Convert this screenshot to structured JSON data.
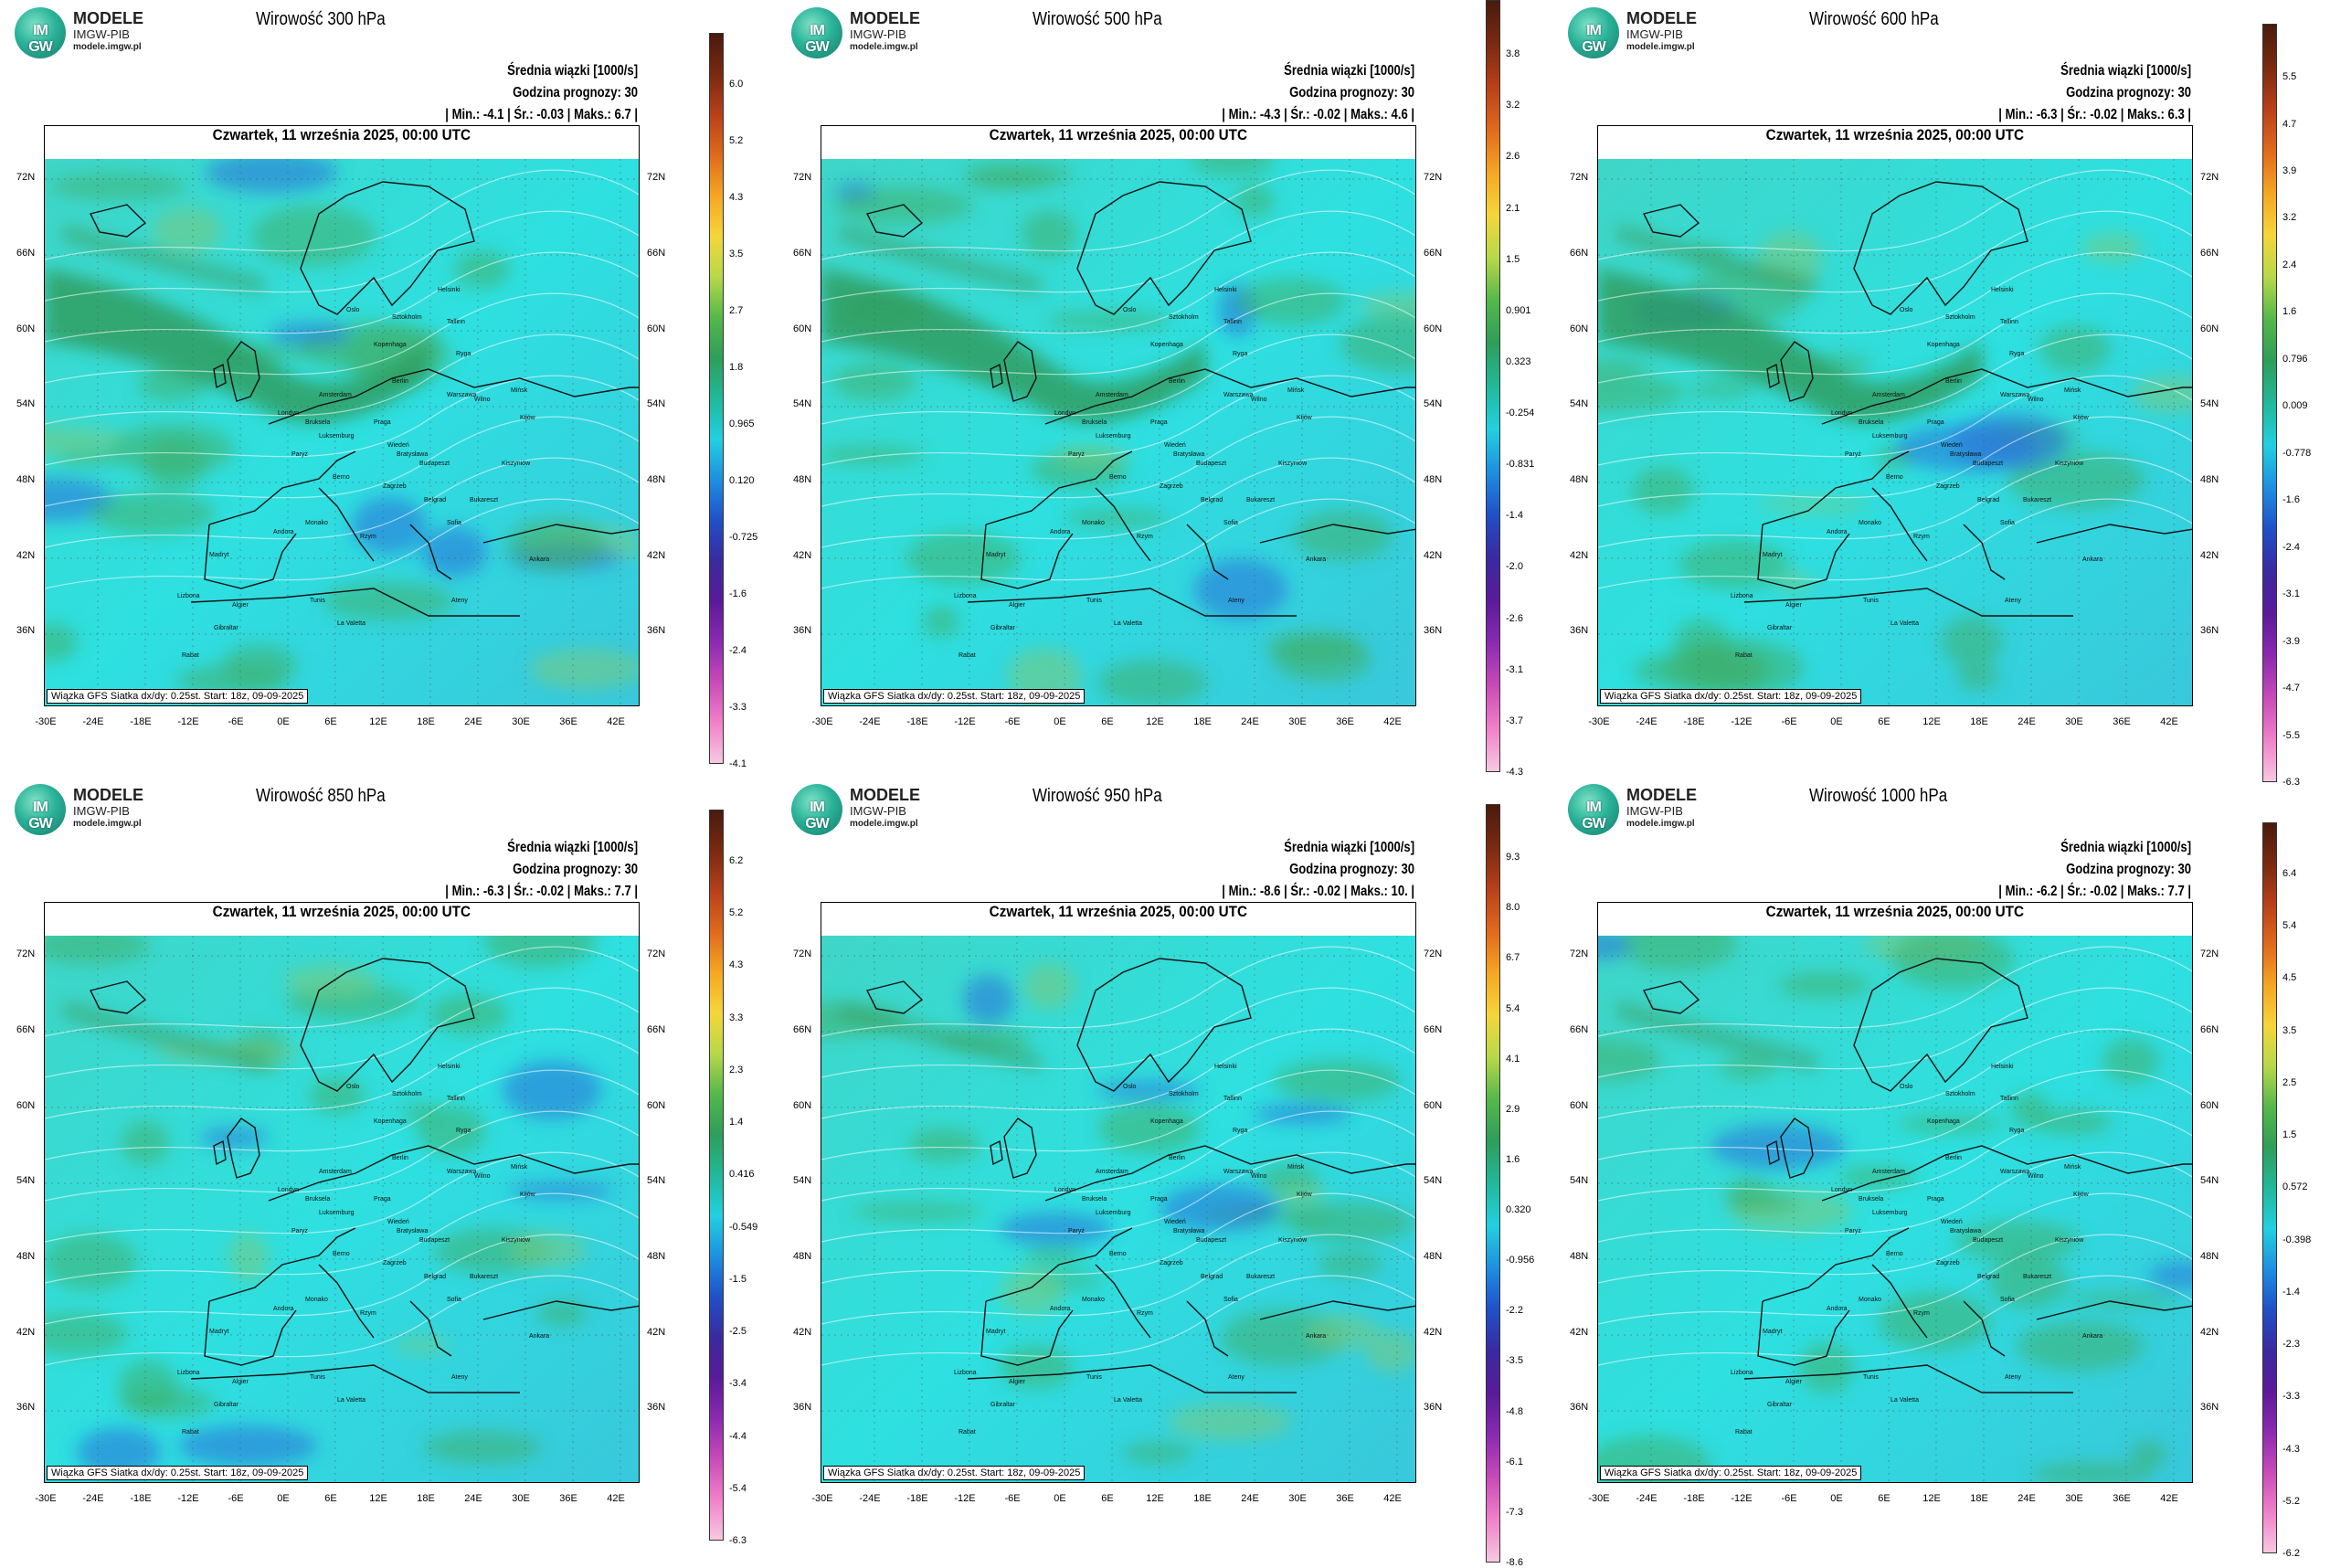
{
  "logo": {
    "mark": "IM GW",
    "name": "MODELE",
    "org": "IMGW-PIB",
    "url": "modele.imgw.pl"
  },
  "common": {
    "mean_label": "Średnia wiązki [1000/s]",
    "forecast_hour": "Godzina prognozy: 30",
    "date": "Czwartek, 11 września 2025, 00:00 UTC",
    "footer": "Wiązka GFS Siatka dx/dy: 0.25st. Start: 18z, 09-09-2025",
    "lat_labels": [
      "72N",
      "66N",
      "60N",
      "54N",
      "48N",
      "42N",
      "36N"
    ],
    "lon_labels": [
      "-30E",
      "-24E",
      "-18E",
      "-12E",
      "-6E",
      "0E",
      "6E",
      "12E",
      "18E",
      "24E",
      "30E",
      "36E",
      "42E"
    ]
  },
  "panels": [
    {
      "title": "Wirowość 300 hPa",
      "stats": "| Min.:    -4.1 | Śr.:    -0.03 | Maks.:     6.7 |",
      "ticks": [
        "6.0",
        "5.2",
        "4.3",
        "3.5",
        "2.7",
        "1.8",
        "0.965",
        "0.120",
        "-0.725",
        "-1.6",
        "-2.4",
        "-3.3",
        "-4.1"
      ]
    },
    {
      "title": "Wirowość 500 hPa",
      "stats": "| Min.:    -4.3 | Śr.:    -0.02 | Maks.:     4.6 |",
      "ticks": [
        "3.8",
        "3.2",
        "2.6",
        "2.1",
        "1.5",
        "0.901",
        "0.323",
        "-0.254",
        "-0.831",
        "-1.4",
        "-2.0",
        "-2.6",
        "-3.1",
        "-3.7",
        "-4.3"
      ]
    },
    {
      "title": "Wirowość 600 hPa",
      "stats": "| Min.:    -6.3 | Śr.:    -0.02 | Maks.:     6.3 |",
      "ticks": [
        "5.5",
        "4.7",
        "3.9",
        "3.2",
        "2.4",
        "1.6",
        "0.796",
        "0.009",
        "-0.778",
        "-1.6",
        "-2.4",
        "-3.1",
        "-3.9",
        "-4.7",
        "-5.5",
        "-6.3"
      ]
    },
    {
      "title": "Wirowość 850 hPa",
      "stats": "| Min.:    -6.3 | Śr.:    -0.02 | Maks.:     7.7 |",
      "ticks": [
        "6.2",
        "5.2",
        "4.3",
        "3.3",
        "2.3",
        "1.4",
        "0.416",
        "-0.549",
        "-1.5",
        "-2.5",
        "-3.4",
        "-4.4",
        "-5.4",
        "-6.3"
      ]
    },
    {
      "title": "Wirowość 950 hPa",
      "stats": "| Min.:    -8.6 | Śr.:    -0.02 | Maks.:     10. |",
      "ticks": [
        "9.3",
        "8.0",
        "6.7",
        "5.4",
        "4.1",
        "2.9",
        "1.6",
        "0.320",
        "-0.956",
        "-2.2",
        "-3.5",
        "-4.8",
        "-6.1",
        "-7.3",
        "-8.6"
      ]
    },
    {
      "title": "Wirowość 1000 hPa",
      "stats": "| Min.:    -6.2 | Śr.:    -0.02 | Maks.:     7.7 |",
      "ticks": [
        "6.4",
        "5.4",
        "4.5",
        "3.5",
        "2.5",
        "1.5",
        "0.572",
        "-0.398",
        "-1.4",
        "-2.3",
        "-3.3",
        "-4.3",
        "-5.2",
        "-6.2"
      ]
    }
  ],
  "colorbar_colors": [
    "#4a1a0e",
    "#7a2a10",
    "#b8401a",
    "#e06a1c",
    "#f5a623",
    "#f5d63a",
    "#b8d84a",
    "#55b84a",
    "#2e9e5a",
    "#22b89a",
    "#22d0e0",
    "#1e90e0",
    "#2050c8",
    "#3a2aa0",
    "#5a1a9a",
    "#8a2ab0",
    "#c84ab8",
    "#f080c8",
    "#f8c8e0"
  ],
  "cities": [
    "Helsinki",
    "Oslo",
    "Sztokholm",
    "Tallinn",
    "Ryga",
    "Wilno",
    "Mińsk",
    "Kopenhaga",
    "Berlin",
    "Warszawa",
    "Amsterdam",
    "Londyn",
    "Bruksela",
    "Paryż",
    "Luksemburg",
    "Praga",
    "Wiedeń",
    "Bratysława",
    "Budapeszt",
    "Berno",
    "Zagrzeb",
    "Belgrad",
    "Bukareszt",
    "Sofia",
    "Rzym",
    "Madryt",
    "Lizbona",
    "Algier",
    "Tunis",
    "Ateny",
    "Ankara",
    "Kijów",
    "Kiszyniów",
    "Andora",
    "Monako",
    "La Valetta",
    "Gibraltar",
    "Rabat"
  ],
  "footer_url": ""
}
